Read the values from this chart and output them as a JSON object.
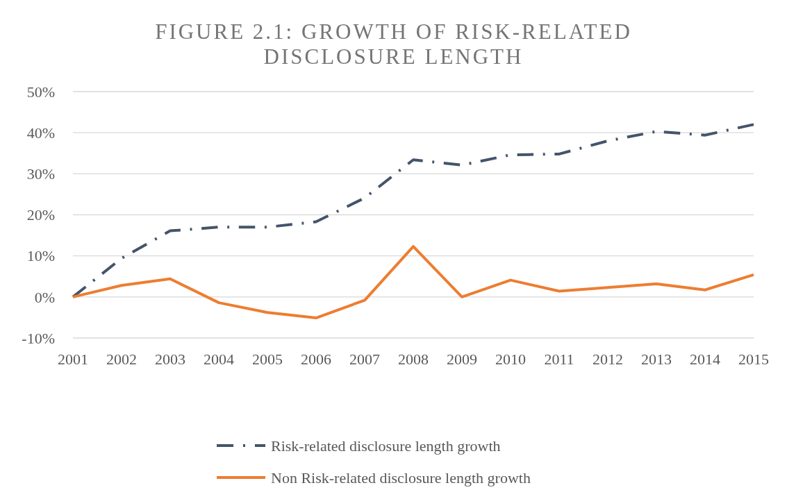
{
  "chart_data": {
    "type": "line",
    "title": "FIGURE 2.1: GROWTH OF RISK-RELATED DISCLOSURE LENGTH",
    "categories": [
      "2001",
      "2002",
      "2003",
      "2004",
      "2005",
      "2006",
      "2007",
      "2008",
      "2009",
      "2010",
      "2011",
      "2012",
      "2013",
      "2014",
      "2015"
    ],
    "series": [
      {
        "name": "Risk-related disclosure length growth",
        "color": "#44546a",
        "line_style": "dashed",
        "values": [
          0,
          9.4,
          16.1,
          17.0,
          17.0,
          18.3,
          24.1,
          33.4,
          32.1,
          34.6,
          34.8,
          38.0,
          40.3,
          39.4,
          42.0
        ]
      },
      {
        "name": "Non Risk-related disclosure length growth",
        "color": "#ed7d31",
        "line_style": "solid",
        "values": [
          0,
          2.8,
          4.4,
          -1.4,
          -3.8,
          -5.1,
          -0.8,
          12.3,
          0,
          4.1,
          1.4,
          2.3,
          3.2,
          1.7,
          5.4
        ]
      }
    ],
    "ylim": [
      -10,
      50
    ],
    "yticks": [
      {
        "value": -10,
        "label": "-10%"
      },
      {
        "value": 0,
        "label": "0%"
      },
      {
        "value": 10,
        "label": "10%"
      },
      {
        "value": 20,
        "label": "20%"
      },
      {
        "value": 30,
        "label": "30%"
      },
      {
        "value": 40,
        "label": "40%"
      },
      {
        "value": 50,
        "label": "50%"
      }
    ],
    "grid": "y",
    "legend": "bottom",
    "marker": "none"
  }
}
